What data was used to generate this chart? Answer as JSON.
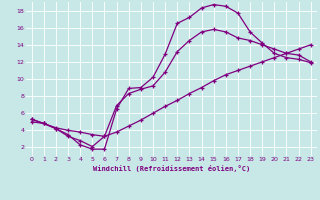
{
  "xlabel": "Windchill (Refroidissement éolien,°C)",
  "background_color": "#c8e8e8",
  "line_color": "#800080",
  "grid_color": "#ffffff",
  "xlim": [
    -0.5,
    23.5
  ],
  "ylim": [
    1.0,
    19.0
  ],
  "xticks": [
    0,
    1,
    2,
    3,
    4,
    5,
    6,
    7,
    8,
    9,
    10,
    11,
    12,
    13,
    14,
    15,
    16,
    17,
    18,
    19,
    20,
    21,
    22,
    23
  ],
  "yticks": [
    2,
    4,
    6,
    8,
    10,
    12,
    14,
    16,
    18
  ],
  "line1_x": [
    0,
    1,
    2,
    3,
    4,
    5,
    6,
    7,
    8,
    9,
    10,
    11,
    12,
    13,
    14,
    15,
    16,
    17,
    18,
    19,
    20,
    21,
    22,
    23
  ],
  "line1_y": [
    5.3,
    4.8,
    4.2,
    3.5,
    2.3,
    1.8,
    1.8,
    6.5,
    8.9,
    9.0,
    10.2,
    12.9,
    16.5,
    17.2,
    18.3,
    18.7,
    18.5,
    17.7,
    15.5,
    14.2,
    13.0,
    12.5,
    12.3,
    11.9
  ],
  "line2_x": [
    0,
    1,
    2,
    3,
    4,
    5,
    6,
    7,
    8,
    9,
    10,
    11,
    12,
    13,
    14,
    15,
    16,
    17,
    18,
    19,
    20,
    21,
    22,
    23
  ],
  "line2_y": [
    5.3,
    4.8,
    4.2,
    3.3,
    2.8,
    2.1,
    3.3,
    6.9,
    8.3,
    8.8,
    9.2,
    10.8,
    13.2,
    14.5,
    15.5,
    15.8,
    15.5,
    14.8,
    14.5,
    14.0,
    13.5,
    13.0,
    12.8,
    12.0
  ],
  "line3_x": [
    0,
    1,
    2,
    3,
    4,
    5,
    6,
    7,
    8,
    9,
    10,
    11,
    12,
    13,
    14,
    15,
    16,
    17,
    18,
    19,
    20,
    21,
    22,
    23
  ],
  "line3_y": [
    5.0,
    4.8,
    4.3,
    4.0,
    3.8,
    3.5,
    3.3,
    3.8,
    4.5,
    5.2,
    6.0,
    6.8,
    7.5,
    8.3,
    9.0,
    9.8,
    10.5,
    11.0,
    11.5,
    12.0,
    12.5,
    13.0,
    13.5,
    14.0
  ]
}
